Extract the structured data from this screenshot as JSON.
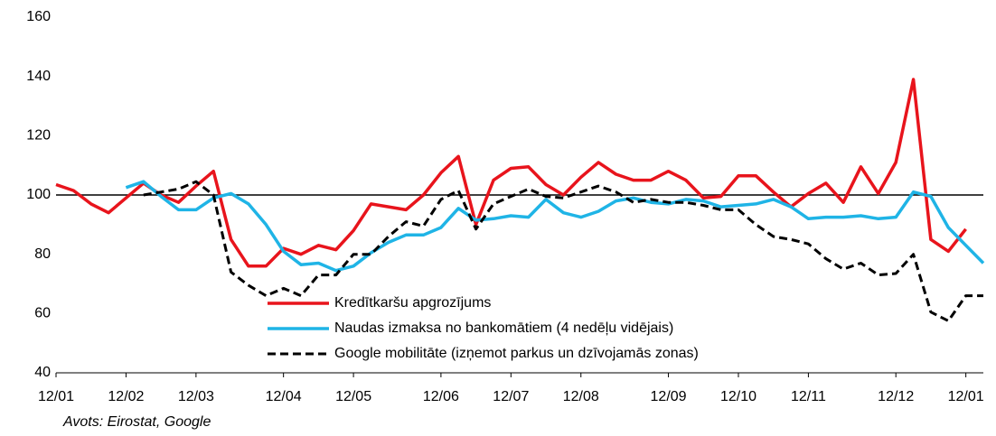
{
  "chart_data": {
    "type": "line",
    "source": "Avots: Eirostat, Google",
    "categories": [
      "12/01",
      null,
      null,
      null,
      "12/02",
      null,
      null,
      null,
      "12/03",
      null,
      null,
      null,
      null,
      "12/04",
      null,
      null,
      null,
      "12/05",
      null,
      null,
      null,
      null,
      "12/06",
      null,
      null,
      null,
      "12/07",
      null,
      null,
      null,
      "12/08",
      null,
      null,
      null,
      null,
      "12/09",
      null,
      null,
      null,
      "12/10",
      null,
      null,
      null,
      "12/11",
      null,
      null,
      null,
      null,
      "12/12",
      null,
      null,
      null,
      "12/01",
      null
    ],
    "series": [
      {
        "name": "Kredītkaršu apgrozījums",
        "color": "#e8141c",
        "dash": false,
        "values": [
          103.5,
          101.5,
          97,
          94,
          99,
          104,
          100,
          97.5,
          103,
          108,
          85,
          76,
          76,
          82,
          80,
          83,
          81.5,
          88,
          97,
          96,
          95,
          100,
          107.5,
          113,
          90,
          105,
          109,
          109.5,
          103.5,
          100,
          106,
          111,
          107,
          105,
          105,
          108,
          105,
          99,
          99.5,
          106.5,
          106.5,
          101,
          96,
          100.5,
          104,
          97.5,
          109.5,
          100.5,
          111,
          139,
          85,
          81,
          88.5,
          null
        ]
      },
      {
        "name": "Naudas izmaksa no bankomātiem (4 nedēļu vidējais)",
        "color": "#1fb4e6",
        "dash": false,
        "values": [
          null,
          null,
          null,
          null,
          102.5,
          104.5,
          99.5,
          95,
          95,
          99,
          100.5,
          97,
          90,
          81,
          76.5,
          77,
          74.5,
          76,
          80.5,
          84,
          86.5,
          86.5,
          89,
          95.5,
          91.5,
          92,
          93,
          92.5,
          98.5,
          94,
          92.5,
          94.5,
          98,
          99,
          97.5,
          97,
          98.5,
          98,
          96,
          96.5,
          97,
          98.5,
          96,
          92,
          92.5,
          92.5,
          93,
          92,
          92.5,
          101,
          99.5,
          89,
          83,
          77
        ]
      },
      {
        "name": "Google mobilitāte (izņemot parkus un dzīvojamās zonas)",
        "color": "#000000",
        "dash": true,
        "values": [
          null,
          null,
          null,
          null,
          null,
          100,
          101,
          102,
          104.5,
          100,
          74,
          69.5,
          66,
          68.5,
          66,
          73,
          73,
          80,
          80,
          86,
          91,
          89.5,
          98.5,
          101.5,
          88.5,
          97,
          99.5,
          102,
          99.5,
          99,
          101,
          103,
          101,
          97.5,
          98.5,
          97.5,
          97.5,
          96.5,
          95,
          95,
          90,
          86,
          85,
          83.5,
          78.5,
          75,
          77,
          73,
          73.5,
          80,
          60.5,
          57.5,
          66,
          66
        ]
      }
    ],
    "reference_line": 100,
    "ylim": [
      40,
      160
    ],
    "yticks": [
      40,
      60,
      80,
      100,
      120,
      140,
      160
    ],
    "grid": false
  }
}
